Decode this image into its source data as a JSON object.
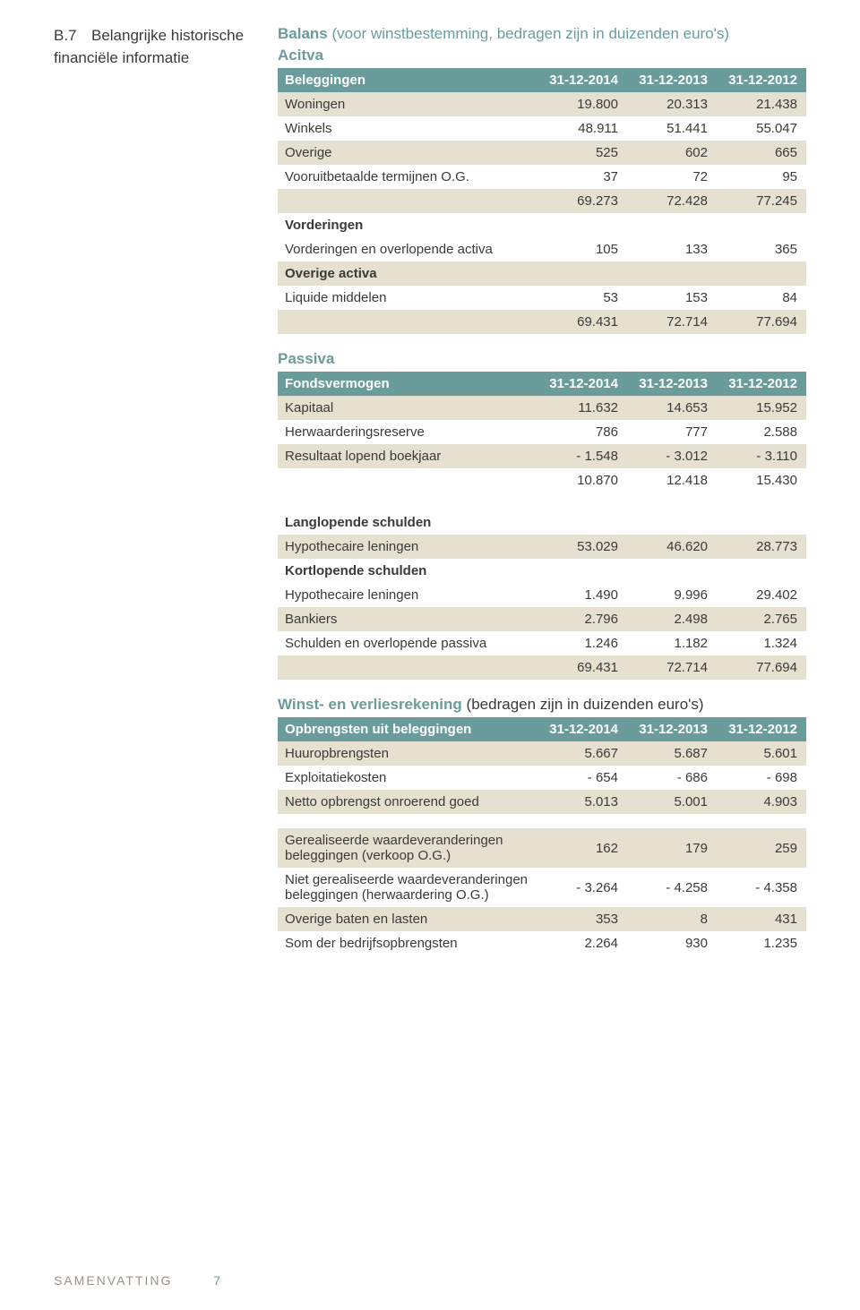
{
  "colors": {
    "teal": "#6b9c9c",
    "tint": "#e6e0d1",
    "text": "#3a3a3a",
    "footer": "#9a9288",
    "white": "#ffffff"
  },
  "section": {
    "num": "B.7",
    "label_line1": "Belangrijke historische",
    "label_line2": "financiële informatie"
  },
  "balans": {
    "title": "Balans",
    "title_note": "(voor winstbestemming, bedragen zijn in duizenden euro's)"
  },
  "activa": {
    "section_title": "Acitva",
    "header": [
      "Beleggingen",
      "31-12-2014",
      "31-12-2013",
      "31-12-2012"
    ],
    "rows": [
      {
        "label": "Woningen",
        "v": [
          "19.800",
          "20.313",
          "21.438"
        ],
        "tint": true
      },
      {
        "label": "Winkels",
        "v": [
          "48.911",
          "51.441",
          "55.047"
        ],
        "tint": false
      },
      {
        "label": "Overige",
        "v": [
          "525",
          "602",
          "665"
        ],
        "tint": true
      },
      {
        "label": "Vooruitbetaalde termijnen O.G.",
        "v": [
          "37",
          "72",
          "95"
        ],
        "tint": false
      },
      {
        "label": "",
        "v": [
          "69.273",
          "72.428",
          "77.245"
        ],
        "tint": true
      },
      {
        "label": "Vorderingen",
        "v": [
          "",
          "",
          ""
        ],
        "tint": false,
        "bold": true
      },
      {
        "label": "Vorderingen en overlopende activa",
        "v": [
          "105",
          "133",
          "365"
        ],
        "tint": false
      },
      {
        "label": "Overige activa",
        "v": [
          "",
          "",
          ""
        ],
        "tint": true,
        "bold": true
      },
      {
        "label": "Liquide middelen",
        "v": [
          "53",
          "153",
          "84"
        ],
        "tint": false
      },
      {
        "label": "",
        "v": [
          "69.431",
          "72.714",
          "77.694"
        ],
        "tint": true
      }
    ]
  },
  "passiva": {
    "section_title": "Passiva",
    "header": [
      "Fondsvermogen",
      "31-12-2014",
      "31-12-2013",
      "31-12-2012"
    ],
    "rows": [
      {
        "label": "Kapitaal",
        "v": [
          "11.632",
          "14.653",
          "15.952"
        ],
        "tint": true
      },
      {
        "label": "Herwaarderingsreserve",
        "v": [
          "786",
          "777",
          "2.588"
        ],
        "tint": false
      },
      {
        "label": "Resultaat lopend boekjaar",
        "v": [
          "- 1.548",
          "- 3.012",
          "- 3.110"
        ],
        "tint": true
      },
      {
        "label": "",
        "v": [
          "10.870",
          "12.418",
          "15.430"
        ],
        "tint": false
      }
    ]
  },
  "schulden": {
    "rows": [
      {
        "label": "Langlopende schulden",
        "v": [
          "",
          "",
          ""
        ],
        "tint": false,
        "bold": true
      },
      {
        "label": "Hypothecaire leningen",
        "v": [
          "53.029",
          "46.620",
          "28.773"
        ],
        "tint": true
      },
      {
        "label": "Kortlopende schulden",
        "v": [
          "",
          "",
          ""
        ],
        "tint": false,
        "bold": true
      },
      {
        "label": "Hypothecaire leningen",
        "v": [
          "1.490",
          "9.996",
          "29.402"
        ],
        "tint": false
      },
      {
        "label": "Bankiers",
        "v": [
          "2.796",
          "2.498",
          "2.765"
        ],
        "tint": true
      },
      {
        "label": "Schulden en overlopende passiva",
        "v": [
          "1.246",
          "1.182",
          "1.324"
        ],
        "tint": false
      },
      {
        "label": "",
        "v": [
          "69.431",
          "72.714",
          "77.694"
        ],
        "tint": true
      }
    ]
  },
  "winst": {
    "section_title": "Winst- en verliesrekening",
    "section_note": "(bedragen zijn in duizenden euro's)",
    "header": [
      "Opbrengsten uit beleggingen",
      "31-12-2014",
      "31-12-2013",
      "31-12-2012"
    ],
    "rows": [
      {
        "label": "Huuropbrengsten",
        "v": [
          "5.667",
          "5.687",
          "5.601"
        ],
        "tint": true
      },
      {
        "label": "Exploitatiekosten",
        "v": [
          "- 654",
          "- 686",
          "- 698"
        ],
        "tint": false
      },
      {
        "label": "Netto opbrengst onroerend goed",
        "v": [
          "5.013",
          "5.001",
          "4.903"
        ],
        "tint": true
      }
    ]
  },
  "winst2": {
    "rows": [
      {
        "label": "Gerealiseerde waardeveranderingen beleggingen (verkoop O.G.)",
        "v": [
          "162",
          "179",
          "259"
        ],
        "tint": true
      },
      {
        "label": "Niet gerealiseerde waardeveranderingen beleggingen (herwaardering O.G.)",
        "v": [
          "- 3.264",
          "- 4.258",
          "- 4.358"
        ],
        "tint": false
      },
      {
        "label": "Overige baten en lasten",
        "v": [
          "353",
          "8",
          "431"
        ],
        "tint": true
      },
      {
        "label": "Som der bedrijfsopbrengsten",
        "v": [
          "2.264",
          "930",
          "1.235"
        ],
        "tint": false
      }
    ]
  },
  "footer": {
    "text": "SAMENVATTING",
    "page": "7"
  }
}
